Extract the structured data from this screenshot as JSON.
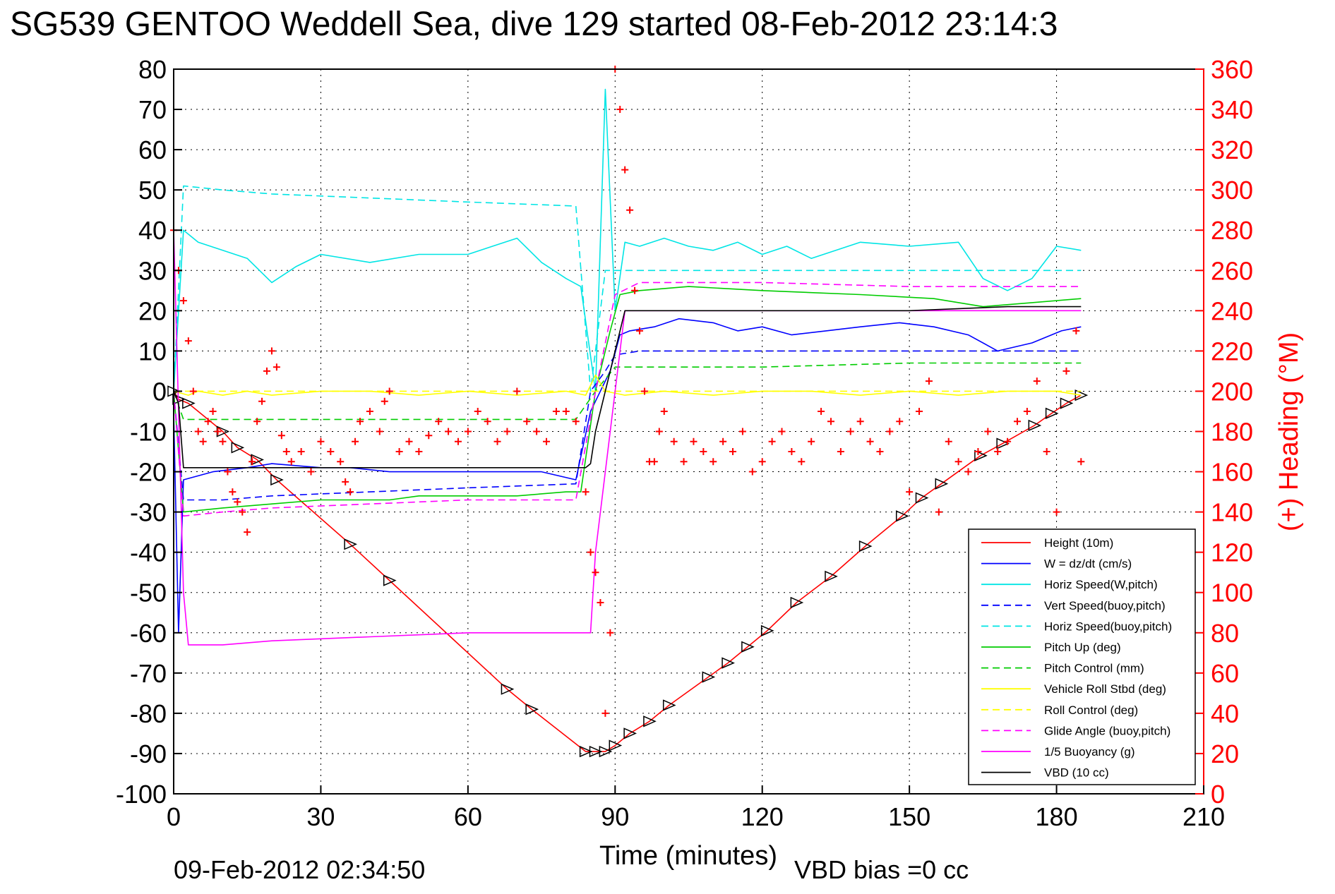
{
  "chart_data": {
    "type": "line",
    "title": "SG539 GENTOO Weddell Sea, dive 129 started 08-Feb-2012 23:14:3",
    "xlabel": "Time (minutes)",
    "ylabel": "",
    "y2label": "(+) Heading (°M)",
    "footer_left": "09-Feb-2012 02:34:50",
    "footer_right": "VBD bias =0 cc",
    "xlim": [
      0,
      210
    ],
    "ylim": [
      -100,
      80
    ],
    "y2lim": [
      0,
      360
    ],
    "xticks": [
      "0",
      "30",
      "60",
      "90",
      "120",
      "150",
      "180",
      "210"
    ],
    "yticks": [
      "80",
      "70",
      "60",
      "50",
      "40",
      "30",
      "20",
      "10",
      "0",
      "-10",
      "-20",
      "-30",
      "-40",
      "-50",
      "-60",
      "-70",
      "-80",
      "-90",
      "-100"
    ],
    "y2ticks": [
      "360",
      "340",
      "320",
      "300",
      "280",
      "260",
      "240",
      "220",
      "200",
      "180",
      "160",
      "140",
      "120",
      "100",
      "80",
      "60",
      "40",
      "20",
      "0"
    ],
    "grid": true,
    "legend_position": "lower-right",
    "series": [
      {
        "name": "Height (10m)",
        "color": "#ff0000",
        "dash": "solid",
        "marker": "triangle",
        "x": [
          0,
          1,
          3,
          10,
          13,
          17,
          21,
          36,
          44,
          68,
          73,
          84,
          86,
          88,
          90,
          93,
          97,
          101,
          109,
          113,
          117,
          121,
          127,
          134,
          141,
          148.5,
          152.5,
          156.5,
          164.5,
          169,
          175.5,
          179,
          182,
          185
        ],
        "y": [
          0,
          -2,
          -3,
          -10,
          -14,
          -17,
          -22,
          -38,
          -47,
          -74,
          -79,
          -89.5,
          -89.5,
          -89.5,
          -88,
          -85,
          -82,
          -78,
          -71,
          -67.5,
          -63.5,
          -59.5,
          -52.5,
          -46,
          -38.5,
          -31,
          -26.5,
          -23,
          -16,
          -13,
          -8.5,
          -5.5,
          -3,
          -1
        ]
      },
      {
        "name": "W = dz/dt (cm/s)",
        "color": "#0000ff",
        "dash": "solid",
        "x": [
          0,
          1,
          2,
          8,
          15,
          20,
          30,
          36,
          44,
          55,
          65,
          75,
          82,
          85,
          87,
          89,
          91,
          93,
          98,
          103,
          110,
          115,
          120,
          126,
          133,
          140,
          148,
          155,
          162,
          168,
          175,
          181,
          185
        ],
        "y": [
          -5,
          -60,
          -22,
          -20,
          -19,
          -18,
          -19,
          -19,
          -20,
          -20,
          -20,
          -20,
          -22,
          -5,
          0,
          5,
          14,
          15,
          16,
          18,
          17,
          15,
          16,
          14,
          15,
          16,
          17,
          16,
          14,
          10,
          12,
          15,
          16
        ]
      },
      {
        "name": "Horiz Speed(W,pitch)",
        "color": "#00e5e5",
        "dash": "solid",
        "x": [
          0,
          2,
          5,
          10,
          15,
          20,
          25,
          30,
          40,
          50,
          60,
          65,
          70,
          75,
          80,
          83,
          86,
          88,
          90,
          92,
          95,
          100,
          105,
          110,
          115,
          120,
          125,
          130,
          140,
          150,
          160,
          165,
          170,
          175,
          180,
          185
        ],
        "y": [
          0,
          40,
          37,
          35,
          33,
          27,
          31,
          34,
          32,
          34,
          34,
          36,
          38,
          32,
          28,
          26,
          0,
          75,
          20,
          37,
          36,
          38,
          36,
          35,
          37,
          34,
          36,
          33,
          37,
          36,
          37,
          28,
          25,
          28,
          36,
          35
        ]
      },
      {
        "name": "Vert Speed(buoy,pitch)",
        "color": "#0000ff",
        "dash": "dashed",
        "x": [
          0,
          2,
          10,
          20,
          40,
          60,
          82,
          85,
          88,
          90,
          95,
          120,
          150,
          185
        ],
        "y": [
          0,
          -27,
          -27,
          -26,
          -25,
          -24,
          -23,
          0,
          5,
          9,
          10,
          10,
          10,
          10
        ]
      },
      {
        "name": "Horiz Speed(buoy,pitch)",
        "color": "#00e5e5",
        "dash": "dashed",
        "x": [
          0,
          2,
          10,
          20,
          40,
          60,
          82,
          85,
          88,
          185
        ],
        "y": [
          0,
          51,
          50,
          49,
          48,
          47,
          46,
          0,
          30,
          30
        ]
      },
      {
        "name": "Pitch Up (deg)",
        "color": "#00cc00",
        "dash": "solid",
        "x": [
          0,
          2,
          10,
          20,
          30,
          40,
          44,
          50,
          60,
          70,
          80,
          83,
          86,
          89,
          91,
          95,
          105,
          120,
          140,
          155,
          165,
          175,
          185
        ],
        "y": [
          0,
          -30,
          -29,
          -28,
          -27,
          -27,
          -27,
          -26,
          -26,
          -26,
          -25,
          -25,
          0,
          15,
          24,
          25,
          26,
          25,
          24,
          23,
          21,
          22,
          23
        ]
      },
      {
        "name": "Pitch Control (mm)",
        "color": "#00cc00",
        "dash": "dashed",
        "x": [
          0,
          2,
          40,
          82,
          86,
          90,
          120,
          150,
          185
        ],
        "y": [
          0,
          -7,
          -7,
          -7,
          0,
          6,
          6,
          7,
          7
        ]
      },
      {
        "name": "Vehicle Roll Stbd (deg)",
        "color": "#ffff00",
        "dash": "solid",
        "x": [
          0,
          3,
          5,
          10,
          15,
          20,
          30,
          40,
          50,
          60,
          70,
          80,
          84,
          86,
          88,
          92,
          100,
          110,
          120,
          130,
          140,
          150,
          160,
          170,
          180,
          185
        ],
        "y": [
          0,
          -1,
          0,
          -1,
          0,
          -1,
          0,
          0,
          -1,
          0,
          -1,
          0,
          -1,
          4,
          0,
          -1,
          0,
          -1,
          0,
          0,
          -1,
          0,
          -1,
          0,
          0,
          -1
        ]
      },
      {
        "name": "Roll Control (deg)",
        "color": "#ffff00",
        "dash": "dashed",
        "x": [
          0,
          185
        ],
        "y": [
          0,
          0
        ]
      },
      {
        "name": "Glide Angle (buoy,pitch)",
        "color": "#ff00ff",
        "dash": "dashed",
        "x": [
          0,
          2,
          10,
          20,
          40,
          60,
          82,
          86,
          90,
          95,
          120,
          150,
          185
        ],
        "y": [
          0,
          -31,
          -30,
          -29,
          -28,
          -27,
          -27,
          0,
          24,
          27,
          27,
          26,
          26
        ]
      },
      {
        "name": "1/5 Buoyancy (g)",
        "color": "#ff00ff",
        "dash": "solid",
        "x": [
          0,
          2,
          3,
          10,
          20,
          40,
          60,
          85,
          86,
          88,
          90,
          92,
          120,
          150,
          185
        ],
        "y": [
          40,
          -50,
          -63,
          -63,
          -62,
          -61,
          -60,
          -60,
          -40,
          -20,
          0,
          20,
          20,
          20,
          20
        ]
      },
      {
        "name": "VBD (10 cc)",
        "color": "#000000",
        "dash": "solid",
        "x": [
          0,
          1,
          2,
          10,
          20,
          40,
          60,
          84,
          85,
          86,
          90,
          92,
          120,
          150,
          170,
          185
        ],
        "y": [
          0,
          -3,
          -19,
          -19,
          -19,
          -19,
          -19,
          -19,
          -18,
          -10,
          10,
          20,
          20,
          20,
          21,
          21
        ]
      }
    ],
    "heading_series": {
      "name": "(+) Heading",
      "color": "#ff0000",
      "marker": "plus",
      "axis": "right",
      "x": [
        0,
        1,
        2,
        3,
        4,
        5,
        6,
        7,
        8,
        9,
        10,
        11,
        12,
        13,
        14,
        15,
        16,
        17,
        18,
        19,
        20,
        21,
        22,
        23,
        24,
        26,
        28,
        30,
        32,
        34,
        35,
        36,
        37,
        38,
        40,
        42,
        43,
        44,
        46,
        48,
        50,
        52,
        54,
        56,
        58,
        60,
        62,
        64,
        66,
        68,
        70,
        72,
        74,
        76,
        78,
        80,
        82,
        84,
        85,
        86,
        87,
        88,
        89,
        90,
        91,
        92,
        93,
        94,
        95,
        96,
        97,
        98,
        99,
        100,
        102,
        104,
        106,
        108,
        110,
        112,
        114,
        116,
        118,
        120,
        122,
        124,
        126,
        128,
        130,
        132,
        134,
        136,
        138,
        140,
        142,
        144,
        146,
        148,
        150,
        152,
        154,
        156,
        158,
        160,
        162,
        164,
        166,
        168,
        170,
        172,
        174,
        176,
        178,
        180,
        182,
        184,
        185
      ],
      "y": [
        280,
        260,
        245,
        225,
        200,
        180,
        175,
        185,
        190,
        180,
        175,
        160,
        150,
        145,
        140,
        130,
        165,
        185,
        195,
        210,
        220,
        212,
        178,
        170,
        165,
        170,
        160,
        175,
        170,
        165,
        155,
        150,
        175,
        185,
        190,
        180,
        195,
        200,
        170,
        175,
        170,
        178,
        185,
        180,
        175,
        180,
        190,
        185,
        175,
        180,
        200,
        185,
        180,
        175,
        190,
        190,
        185,
        150,
        120,
        110,
        95,
        40,
        80,
        360,
        340,
        310,
        290,
        250,
        230,
        200,
        165,
        165,
        180,
        190,
        175,
        165,
        175,
        170,
        165,
        175,
        170,
        180,
        160,
        165,
        175,
        180,
        170,
        165,
        175,
        190,
        185,
        170,
        180,
        185,
        175,
        170,
        180,
        185,
        150,
        190,
        205,
        140,
        175,
        165,
        160,
        170,
        180,
        170,
        175,
        185,
        190,
        205,
        170,
        140,
        210,
        230,
        165
      ]
    }
  }
}
